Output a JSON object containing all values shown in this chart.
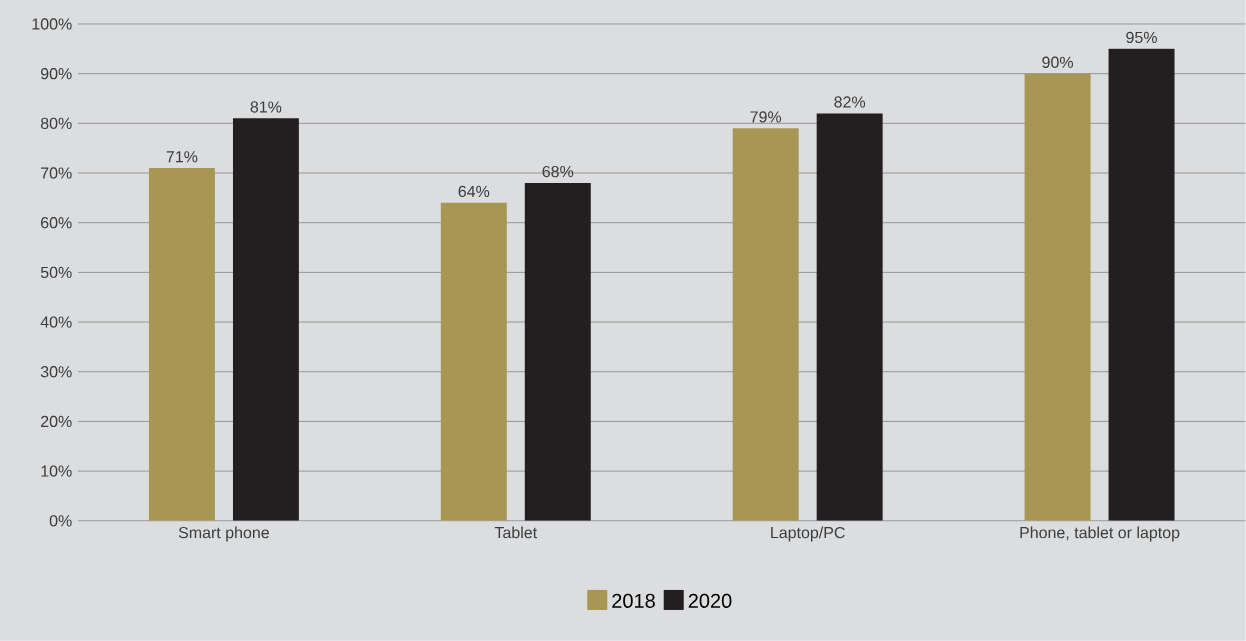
{
  "chart_data": {
    "type": "bar",
    "categories": [
      "Smart phone",
      "Tablet",
      "Laptop/PC",
      "Phone, tablet or laptop"
    ],
    "series": [
      {
        "name": "2018",
        "color": "#a89655",
        "values": [
          71,
          64,
          79,
          90
        ],
        "value_labels": [
          "71%",
          "64%",
          "79%",
          "90%"
        ]
      },
      {
        "name": "2020",
        "color": "#231f20",
        "values": [
          81,
          68,
          82,
          95
        ],
        "value_labels": [
          "81%",
          "68%",
          "82%",
          "95%"
        ]
      }
    ],
    "ylim": [
      0,
      100
    ],
    "yticks": [
      {
        "value": 0,
        "label": "0%"
      },
      {
        "value": 10,
        "label": "10%"
      },
      {
        "value": 20,
        "label": "20%"
      },
      {
        "value": 30,
        "label": "30%"
      },
      {
        "value": 40,
        "label": "40%"
      },
      {
        "value": 50,
        "label": "50%"
      },
      {
        "value": 60,
        "label": "60%"
      },
      {
        "value": 70,
        "label": "70%"
      },
      {
        "value": 80,
        "label": "80%"
      },
      {
        "value": 90,
        "label": "90%"
      },
      {
        "value": 100,
        "label": "100%"
      }
    ],
    "grid": "y",
    "legend": "bottom"
  }
}
